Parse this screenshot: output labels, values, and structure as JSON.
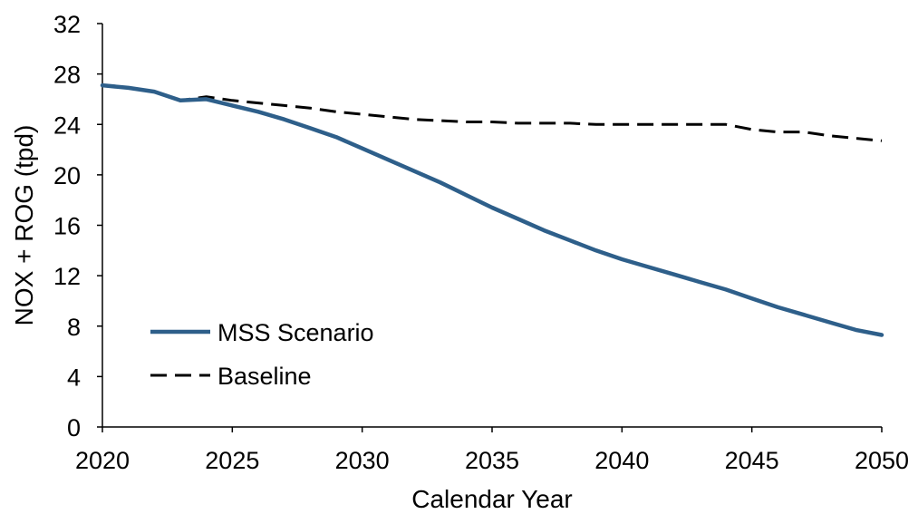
{
  "chart_data": {
    "type": "line",
    "title": "",
    "xlabel": "Calendar Year",
    "ylabel": "NOX + ROG (tpd)",
    "xlim": [
      2020,
      2050
    ],
    "ylim": [
      0,
      32
    ],
    "x_ticks": [
      2020,
      2025,
      2030,
      2035,
      2040,
      2045,
      2050
    ],
    "y_ticks": [
      0,
      4,
      8,
      12,
      16,
      20,
      24,
      28,
      32
    ],
    "grid": false,
    "legend_position": "bottom-left",
    "x": [
      2020,
      2021,
      2022,
      2023,
      2024,
      2025,
      2026,
      2027,
      2028,
      2029,
      2030,
      2031,
      2032,
      2033,
      2034,
      2035,
      2036,
      2037,
      2038,
      2039,
      2040,
      2041,
      2042,
      2043,
      2044,
      2045,
      2046,
      2047,
      2048,
      2049,
      2050
    ],
    "series": [
      {
        "name": "MSS Scenario",
        "color": "#2e5f8a",
        "style": "solid",
        "values": [
          27.1,
          26.9,
          26.6,
          25.9,
          26.0,
          25.5,
          25.0,
          24.4,
          23.7,
          23.0,
          22.1,
          21.2,
          20.3,
          19.4,
          18.4,
          17.4,
          16.5,
          15.6,
          14.8,
          14.0,
          13.3,
          12.7,
          12.1,
          11.5,
          10.9,
          10.2,
          9.5,
          8.9,
          8.3,
          7.7,
          7.3
        ]
      },
      {
        "name": "Baseline",
        "color": "#000000",
        "style": "dashed",
        "values": [
          27.1,
          26.9,
          26.6,
          25.9,
          26.2,
          25.9,
          25.7,
          25.5,
          25.3,
          25.0,
          24.8,
          24.6,
          24.4,
          24.3,
          24.2,
          24.2,
          24.1,
          24.1,
          24.1,
          24.0,
          24.0,
          24.0,
          24.0,
          24.0,
          24.0,
          23.6,
          23.4,
          23.4,
          23.1,
          22.9,
          22.7
        ]
      }
    ]
  }
}
